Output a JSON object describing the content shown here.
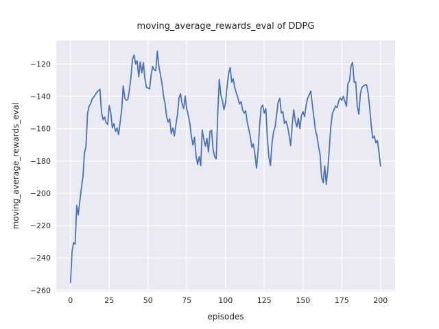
{
  "figure": {
    "title": "moving_average_rewards_eval of DDPG",
    "xlabel": "episodes",
    "ylabel": "moving_average_rewards_eval"
  },
  "colors": {
    "line": "#4C72B0",
    "axes_background": "#EAEAF2",
    "grid": "#FFFFFF",
    "text": "#262626",
    "figure_background": "#FFFFFF"
  },
  "chart_data": {
    "type": "line",
    "title": "moving_average_rewards_eval of DDPG",
    "xlabel": "episodes",
    "ylabel": "moving_average_rewards_eval",
    "grid": true,
    "legend": null,
    "xlim": [
      -9.2,
      209.4
    ],
    "ylim": [
      -260.9,
      -105.4
    ],
    "x_ticks": [
      0,
      25,
      50,
      75,
      100,
      125,
      150,
      175,
      200
    ],
    "x_tick_labels": [
      "0",
      "25",
      "50",
      "75",
      "100",
      "125",
      "150",
      "175",
      "200"
    ],
    "y_ticks": [
      -120,
      -140,
      -160,
      -180,
      -200,
      -220,
      -240,
      -260
    ],
    "y_tick_labels": [
      "−120",
      "−140",
      "−160",
      "−180",
      "−200",
      "−220",
      "−240",
      "−260"
    ],
    "series": [
      {
        "name": "moving_average_rewards_eval",
        "x_start": 0,
        "x_step": 1,
        "values": [
          -255.3,
          -236.0,
          -230.5,
          -231.5,
          -207.5,
          -213.5,
          -205.0,
          -197.0,
          -190.0,
          -175.0,
          -171.0,
          -150.5,
          -146.0,
          -144.5,
          -141.5,
          -140.5,
          -139.0,
          -137.5,
          -136.5,
          -135.6,
          -150.0,
          -154.5,
          -152.8,
          -156.5,
          -157.4,
          -145.6,
          -150.4,
          -159.6,
          -156.8,
          -161.7,
          -159.6,
          -163.8,
          -156.0,
          -148.5,
          -133.5,
          -141.0,
          -142.4,
          -142.0,
          -136.0,
          -128.0,
          -117.0,
          -114.4,
          -120.0,
          -118.0,
          -128.0,
          -118.6,
          -125.5,
          -119.0,
          -129.0,
          -134.5,
          -134.8,
          -135.4,
          -127.1,
          -121.4,
          -123.5,
          -124.2,
          -112.0,
          -121.4,
          -126.5,
          -132.0,
          -139.8,
          -144.5,
          -152.5,
          -156.0,
          -153.9,
          -163.1,
          -159.6,
          -164.5,
          -157.5,
          -151.5,
          -141.0,
          -138.4,
          -144.8,
          -147.6,
          -139.8,
          -148.0,
          -151.8,
          -157.0,
          -165.0,
          -170.2,
          -165.3,
          -177.0,
          -182.2,
          -177.3,
          -182.9,
          -160.8,
          -166.7,
          -170.9,
          -166.0,
          -174.5,
          -161.7,
          -161.0,
          -173.0,
          -177.3,
          -178.7,
          -150.4,
          -129.5,
          -139.1,
          -142.6,
          -148.3,
          -144.0,
          -134.0,
          -126.0,
          -122.1,
          -131.3,
          -129.2,
          -134.8,
          -138.0,
          -141.0,
          -144.8,
          -143.3,
          -148.3,
          -150.4,
          -149.0,
          -156.0,
          -160.3,
          -165.0,
          -171.6,
          -169.5,
          -176.0,
          -184.4,
          -174.0,
          -158.0,
          -146.8,
          -145.4,
          -150.4,
          -147.6,
          -166.0,
          -178.0,
          -182.9,
          -169.0,
          -162.0,
          -158.9,
          -151.0,
          -143.5,
          -141.2,
          -150.4,
          -149.5,
          -156.8,
          -155.3,
          -158.5,
          -163.8,
          -170.5,
          -158.0,
          -148.3,
          -155.0,
          -158.9,
          -153.5,
          -160.0,
          -151.8,
          -149.5,
          -152.5,
          -145.4,
          -141.2,
          -139.0,
          -136.8,
          -145.0,
          -153.0,
          -161.0,
          -164.5,
          -171.0,
          -176.0,
          -190.0,
          -193.5,
          -183.1,
          -194.5,
          -185.0,
          -171.6,
          -158.0,
          -150.4,
          -148.3,
          -146.0,
          -147.0,
          -143.0,
          -141.0,
          -142.5,
          -140.0,
          -143.0,
          -146.2,
          -132.0,
          -130.5,
          -121.0,
          -119.0,
          -131.3,
          -131.0,
          -146.0,
          -151.1,
          -138.5,
          -134.5,
          -133.5,
          -133.0,
          -132.9,
          -138.0,
          -147.0,
          -158.0,
          -165.9,
          -164.5,
          -168.8,
          -167.4,
          -174.5,
          -183.1
        ]
      }
    ]
  }
}
